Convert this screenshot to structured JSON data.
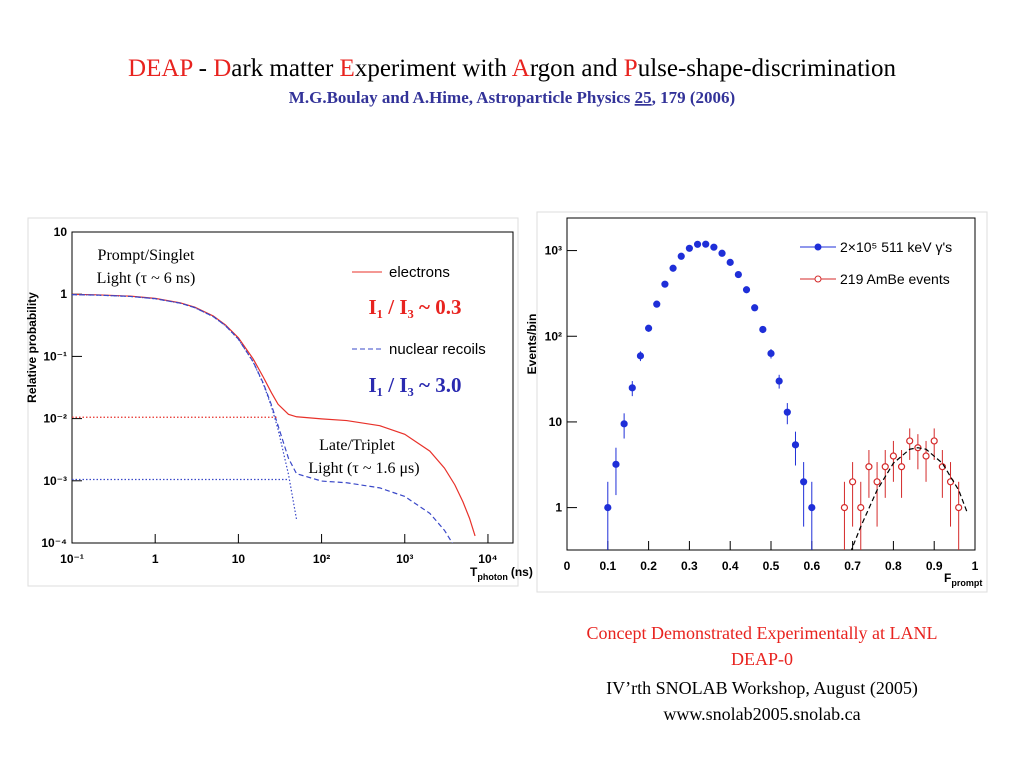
{
  "slide": {
    "title_parts": [
      "DEAP",
      " - ",
      "D",
      "ark matter ",
      "E",
      "xperiment with ",
      "A",
      "rgon and ",
      "P",
      "ulse-shape-discrimination"
    ],
    "subtitle_parts": [
      "M.G.Boulay and A.Hime, Astroparticle Physics ",
      "25",
      ", 179 (2006)"
    ],
    "footer": [
      "Concept Demonstrated Experimentally at LANL",
      "DEAP-0",
      "IV’rth SNOLAB Workshop, August (2005)",
      "www.snolab2005.snolab.ca"
    ]
  },
  "chart_data": [
    {
      "type": "line",
      "ylabel": "Relative probability",
      "xlabel": {
        "main": "T",
        "sub": "photon",
        "unit": "(ns)"
      },
      "logx": true,
      "logy": true,
      "xlim": [
        0.1,
        20000
      ],
      "ylim": [
        0.0001,
        10
      ],
      "xticks": [
        {
          "value": 0.1,
          "label": "10⁻¹"
        },
        1,
        10,
        {
          "value": 100,
          "label": "10²"
        },
        {
          "value": 1000,
          "label": "10³"
        },
        {
          "value": 10000,
          "label": "10⁴"
        }
      ],
      "yticks": [
        {
          "value": 0.0001,
          "label": "10⁻⁴"
        },
        {
          "value": 0.001,
          "label": "10⁻³"
        },
        {
          "value": 0.01,
          "label": "10⁻²"
        },
        {
          "value": 0.1,
          "label": "10⁻¹"
        },
        1,
        10
      ],
      "x": [
        0.1,
        0.2,
        0.5,
        1,
        2,
        3,
        5,
        7,
        10,
        15,
        20,
        25,
        30,
        40,
        50,
        100,
        200,
        500,
        1000,
        2000,
        3000,
        4000,
        5000,
        6000,
        7000
      ],
      "series": [
        {
          "name": "electrons",
          "color": "#e8312a",
          "dash": "solid",
          "values": [
            0.994,
            0.978,
            0.93,
            0.856,
            0.727,
            0.617,
            0.445,
            0.321,
            0.199,
            0.092,
            0.046,
            0.026,
            0.017,
            0.0117,
            0.0107,
            0.0099,
            0.0093,
            0.0077,
            0.0056,
            0.003,
            0.0016,
            0.00086,
            0.00046,
            0.00025,
            0.00013
          ]
        },
        {
          "name": "nuclear recoils",
          "color": "#3a48c8",
          "dash": "dashed",
          "values": [
            0.984,
            0.968,
            0.921,
            0.847,
            0.718,
            0.608,
            0.436,
            0.312,
            0.19,
            0.083,
            0.0367,
            0.0165,
            0.0077,
            0.0023,
            0.0013,
            0.00099,
            0.00093,
            0.00077,
            0.00056,
            0.0003,
            0.00016,
            8.6e-05,
            4.6e-05,
            null,
            null
          ]
        },
        {
          "color": "#3a48c8",
          "dash": "dotted",
          "values": [
            0.983,
            0.967,
            0.92,
            0.846,
            0.717,
            0.607,
            0.435,
            0.311,
            0.189,
            0.082,
            0.0357,
            0.0155,
            0.0067,
            0.00127,
            0.00024,
            null,
            null,
            null,
            null,
            null,
            null,
            null,
            null,
            null,
            null
          ]
        },
        {
          "color": "#e8312a",
          "dash": "dotted",
          "values": [
            0.0105,
            0.0105,
            0.0105,
            0.0105,
            0.0105,
            0.0105,
            0.0105,
            0.0105,
            0.0105,
            0.0105,
            0.0105,
            0.0105,
            0.0105,
            null,
            null,
            null,
            null,
            null,
            null,
            null,
            null,
            null,
            null,
            null,
            null
          ]
        },
        {
          "color": "#3a48c8",
          "dash": "dotted",
          "values": [
            0.00105,
            0.00105,
            0.00105,
            0.00105,
            0.00105,
            0.00105,
            0.00105,
            0.00105,
            0.00105,
            0.00105,
            0.00105,
            0.00105,
            0.00105,
            0.00105,
            null,
            null,
            null,
            null,
            null,
            null,
            null,
            null,
            null,
            null,
            null
          ]
        }
      ],
      "annotations": [
        "Prompt/Singlet",
        "Light (τ ~ 6 ns)",
        "Late/Triplet",
        "Light (τ ~ 1.6 μs)",
        "I₁ / I₃ ~ 0.3",
        "I₁ / I₃ ~ 3.0"
      ]
    },
    {
      "type": "scatter",
      "ylabel": "Events/bin",
      "xlabel": {
        "main": "F",
        "sub": "prompt"
      },
      "logy": true,
      "xlim": [
        0,
        1
      ],
      "ylim": [
        0.32,
        2400
      ],
      "xticks": [
        0,
        0.1,
        0.2,
        0.3,
        0.4,
        0.5,
        0.6,
        0.7,
        0.8,
        0.9,
        1
      ],
      "yticks": [
        1,
        10,
        {
          "value": 100,
          "label": "10²"
        },
        {
          "value": 1000,
          "label": "10³"
        }
      ],
      "series": [
        {
          "name": "2×10⁵ 511 keV γ's",
          "color": "#1f2fd8",
          "marker": "filled",
          "x": [
            0.1,
            0.12,
            0.14,
            0.16,
            0.18,
            0.2,
            0.22,
            0.24,
            0.26,
            0.28,
            0.3,
            0.32,
            0.34,
            0.36,
            0.38,
            0.4,
            0.42,
            0.44,
            0.46,
            0.48,
            0.5,
            0.52,
            0.54,
            0.56,
            0.58,
            0.6
          ],
          "values": [
            1,
            3.2,
            9.5,
            25,
            59,
            124,
            237,
            405,
            622,
            858,
            1063,
            1184,
            1188,
            1095,
            930,
            728,
            525,
            349,
            215,
            120,
            63,
            30,
            13,
            5.4,
            2,
            1
          ],
          "errors": [
            1,
            1.8,
            3.1,
            5,
            7.7,
            11,
            15,
            20,
            25,
            29,
            33,
            34,
            34,
            33,
            30,
            27,
            23,
            19,
            15,
            11,
            8,
            5.5,
            3.6,
            2.3,
            1.4,
            1
          ]
        },
        {
          "name": "219 AmBe events",
          "color": "#d42a2a",
          "marker": "open",
          "x": [
            0.68,
            0.7,
            0.72,
            0.74,
            0.76,
            0.78,
            0.8,
            0.82,
            0.84,
            0.86,
            0.88,
            0.9,
            0.92,
            0.94,
            0.96
          ],
          "values": [
            1,
            2,
            1,
            3,
            2,
            3,
            4,
            3,
            6,
            5,
            4,
            6,
            3,
            2,
            1
          ],
          "errors": [
            1,
            1.4,
            1,
            1.7,
            1.4,
            1.7,
            2,
            1.7,
            2.4,
            2.2,
            2,
            2.4,
            1.7,
            1.4,
            1
          ]
        },
        {
          "color": "#000000",
          "marker": "none",
          "dash": "dashed",
          "x": [
            0.68,
            0.72,
            0.76,
            0.8,
            0.84,
            0.86,
            0.88,
            0.92,
            0.96,
            0.98
          ],
          "values": [
            0.2,
            0.6,
            1.6,
            3.3,
            4.8,
            5,
            4.8,
            3.3,
            1.6,
            0.9
          ]
        }
      ]
    }
  ]
}
